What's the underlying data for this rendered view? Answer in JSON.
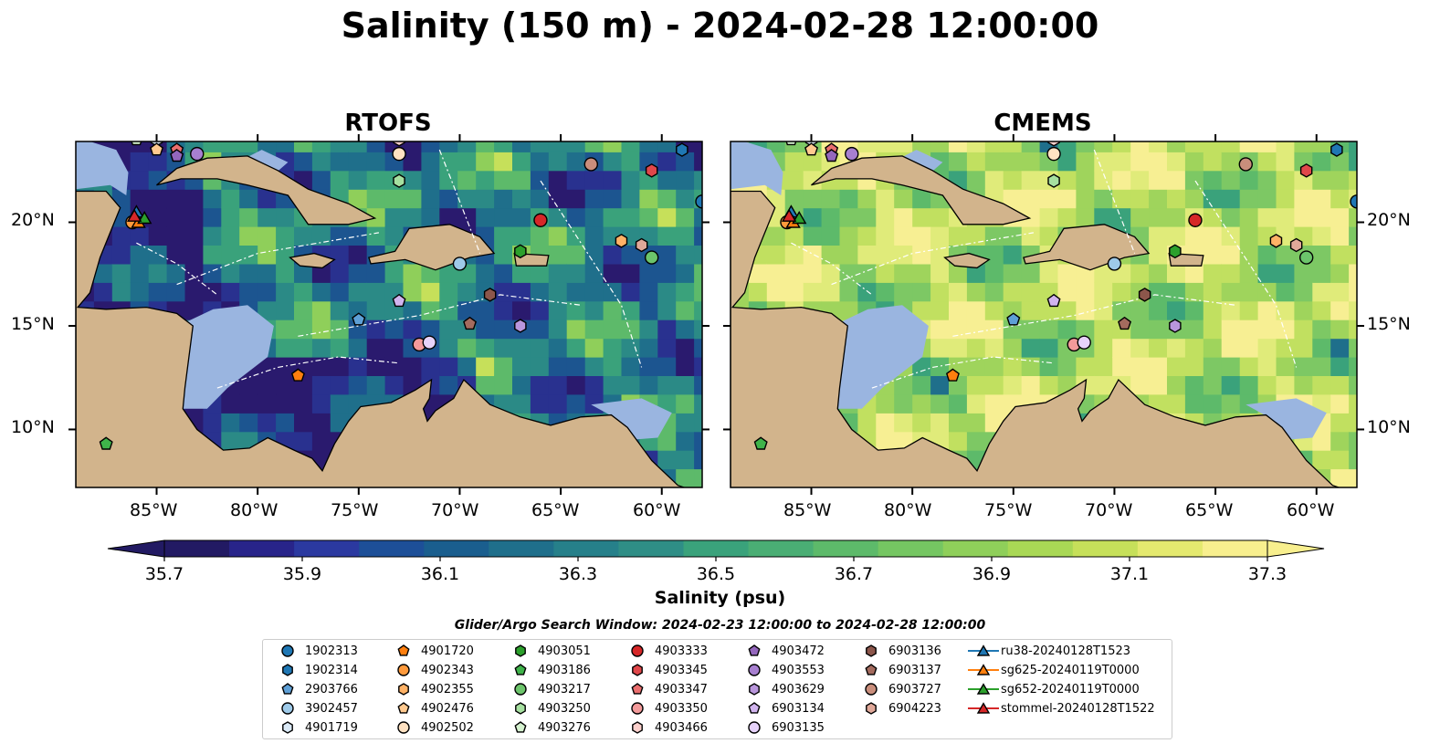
{
  "title": "Salinity (150 m) - 2024-02-28 12:00:00",
  "panels": [
    {
      "title": "RTOFS",
      "palette": [
        "#2a1a6e",
        "#29318f",
        "#1c5590",
        "#1f6f8b",
        "#2b8a86",
        "#3aa27b",
        "#5dba6a",
        "#8fcf5a",
        "#c6e05a"
      ]
    },
    {
      "title": "CMEMS",
      "palette": [
        "#2a1a6e",
        "#1f6f8b",
        "#3aa27b",
        "#5dba6a",
        "#7dc864",
        "#9fd45c",
        "#c1e060",
        "#e0eb7a",
        "#f7ef93"
      ]
    }
  ],
  "colors": {
    "land": "#d2b48c",
    "shelf": "#9ab5e0",
    "deep": "#22185c",
    "border": "#000000"
  },
  "axes": {
    "lon_labels": [
      "85°W",
      "80°W",
      "75°W",
      "70°W",
      "65°W",
      "60°W"
    ],
    "lat_labels": [
      "20°N",
      "15°N",
      "10°N"
    ]
  },
  "colorbar": {
    "label": "Salinity (psu)",
    "ticks": [
      "35.7",
      "35.9",
      "36.1",
      "36.3",
      "36.5",
      "36.7",
      "36.9",
      "37.1",
      "37.3"
    ],
    "colors": [
      "#221a63",
      "#28248a",
      "#2b39a0",
      "#1d4f98",
      "#1a5e8e",
      "#1f6f8b",
      "#26808a",
      "#2f8e86",
      "#3aa27b",
      "#4aae74",
      "#5dba6a",
      "#75c662",
      "#8fcf5a",
      "#a9d855",
      "#c6e05a",
      "#e4e96f",
      "#f8ef8e"
    ],
    "extend_low": "#221a63",
    "extend_high": "#f8ef8e"
  },
  "legend": {
    "title": "Glider/Argo Search Window: 2024-02-23 12:00:00 to 2024-02-28 12:00:00",
    "columns": [
      [
        {
          "label": "1902313",
          "marker": "circle",
          "color": "#1f77b4"
        },
        {
          "label": "1902314",
          "marker": "hexagon",
          "color": "#1f77b4"
        },
        {
          "label": "2903766",
          "marker": "pentagon",
          "color": "#5e9fd6"
        },
        {
          "label": "3902457",
          "marker": "circle",
          "color": "#9ecae9"
        },
        {
          "label": "4901719",
          "marker": "hexagon",
          "color": "#dbeaf7"
        }
      ],
      [
        {
          "label": "4901720",
          "marker": "pentagon",
          "color": "#ff7f0e"
        },
        {
          "label": "4902343",
          "marker": "circle",
          "color": "#ff9a3c"
        },
        {
          "label": "4902355",
          "marker": "hexagon",
          "color": "#ffb266"
        },
        {
          "label": "4902476",
          "marker": "pentagon",
          "color": "#ffc98f"
        },
        {
          "label": "4902502",
          "marker": "circle",
          "color": "#ffe2c2"
        }
      ],
      [
        {
          "label": "4903051",
          "marker": "hexagon",
          "color": "#2ca02c"
        },
        {
          "label": "4903186",
          "marker": "pentagon",
          "color": "#3fb34a"
        },
        {
          "label": "4903217",
          "marker": "circle",
          "color": "#6cc46b"
        },
        {
          "label": "4903250",
          "marker": "hexagon",
          "color": "#a6e0a0"
        },
        {
          "label": "4903276",
          "marker": "pentagon",
          "color": "#d5f2cf"
        }
      ],
      [
        {
          "label": "4903333",
          "marker": "circle",
          "color": "#d62728"
        },
        {
          "label": "4903345",
          "marker": "hexagon",
          "color": "#e0474a"
        },
        {
          "label": "4903347",
          "marker": "pentagon",
          "color": "#ea6e6e"
        },
        {
          "label": "4903350",
          "marker": "circle",
          "color": "#f39a9a"
        },
        {
          "label": "4903466",
          "marker": "hexagon",
          "color": "#fcd0cc"
        }
      ],
      [
        {
          "label": "4903472",
          "marker": "pentagon",
          "color": "#9467bd"
        },
        {
          "label": "4903553",
          "marker": "circle",
          "color": "#a77fd0"
        },
        {
          "label": "4903629",
          "marker": "hexagon",
          "color": "#b996dc"
        },
        {
          "label": "6903134",
          "marker": "pentagon",
          "color": "#d1b4ee"
        },
        {
          "label": "6903135",
          "marker": "circle",
          "color": "#e6d2fa"
        }
      ],
      [
        {
          "label": "6903136",
          "marker": "hexagon",
          "color": "#8c564b"
        },
        {
          "label": "6903137",
          "marker": "pentagon",
          "color": "#a46b5e"
        },
        {
          "label": "6903727",
          "marker": "circle",
          "color": "#c98e7c"
        },
        {
          "label": "6904223",
          "marker": "hexagon",
          "color": "#e0a899"
        }
      ],
      [
        {
          "label": "ru38-20240128T1523",
          "marker": "triangle",
          "color": "#1f77b4"
        },
        {
          "label": "sg625-20240119T0000",
          "marker": "triangle",
          "color": "#ff7f0e"
        },
        {
          "label": "sg652-20240119T0000",
          "marker": "triangle",
          "color": "#2ca02c"
        },
        {
          "label": "stommel-20240128T1522",
          "marker": "triangle",
          "color": "#d62728"
        }
      ]
    ]
  },
  "markers": [
    {
      "id": "1902313",
      "lon": -58.0,
      "lat": 21.0
    },
    {
      "id": "1902314",
      "lon": -59.0,
      "lat": 23.5
    },
    {
      "id": "2903766",
      "lon": -75.0,
      "lat": 15.3
    },
    {
      "id": "3902457",
      "lon": -70.0,
      "lat": 18.0
    },
    {
      "id": "4901719",
      "lon": -85.0,
      "lat": 24.0
    },
    {
      "id": "4901720",
      "lon": -78.0,
      "lat": 12.6
    },
    {
      "id": "4902343",
      "lon": -86.2,
      "lat": 20.0
    },
    {
      "id": "4902355",
      "lon": -62.0,
      "lat": 19.1
    },
    {
      "id": "4902476",
      "lon": -85.0,
      "lat": 23.5
    },
    {
      "id": "4902502",
      "lon": -73.0,
      "lat": 23.3
    },
    {
      "id": "4903051",
      "lon": -67.0,
      "lat": 18.6
    },
    {
      "id": "4903186",
      "lon": -87.5,
      "lat": 9.3
    },
    {
      "id": "4903217",
      "lon": -60.5,
      "lat": 18.3
    },
    {
      "id": "4903250",
      "lon": -73.0,
      "lat": 22.0
    },
    {
      "id": "4903276",
      "lon": -86.0,
      "lat": 24.0
    },
    {
      "id": "4903333",
      "lon": -66.0,
      "lat": 20.1
    },
    {
      "id": "4903345",
      "lon": -60.5,
      "lat": 22.5
    },
    {
      "id": "4903347",
      "lon": -84.0,
      "lat": 23.5
    },
    {
      "id": "4903350",
      "lon": -72.0,
      "lat": 14.1
    },
    {
      "id": "4903466",
      "lon": -73.0,
      "lat": 24.0
    },
    {
      "id": "4903472",
      "lon": -84.0,
      "lat": 23.2
    },
    {
      "id": "4903553",
      "lon": -83.0,
      "lat": 23.3
    },
    {
      "id": "4903629",
      "lon": -67.0,
      "lat": 15.0
    },
    {
      "id": "6903134",
      "lon": -73.0,
      "lat": 16.2
    },
    {
      "id": "6903135",
      "lon": -71.5,
      "lat": 14.2
    },
    {
      "id": "6903136",
      "lon": -68.5,
      "lat": 16.5
    },
    {
      "id": "6903137",
      "lon": -69.5,
      "lat": 15.1
    },
    {
      "id": "6903727",
      "lon": -63.5,
      "lat": 22.8
    },
    {
      "id": "6904223",
      "lon": -61.0,
      "lat": 18.9
    },
    {
      "id": "ru38-20240128T1523",
      "lon": -86.0,
      "lat": 20.5
    },
    {
      "id": "sg625-20240119T0000",
      "lon": -85.9,
      "lat": 20.0
    },
    {
      "id": "sg652-20240119T0000",
      "lon": -85.6,
      "lat": 20.2
    },
    {
      "id": "stommel-20240128T1522",
      "lon": -86.1,
      "lat": 20.3
    }
  ]
}
